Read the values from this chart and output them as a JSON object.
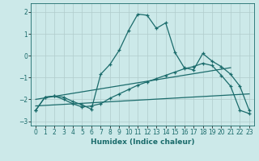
{
  "xlabel": "Humidex (Indice chaleur)",
  "ylabel": "",
  "background_color": "#cce9e9",
  "grid_color": "#b0cccc",
  "line_color": "#1a6b6b",
  "xlim": [
    -0.5,
    23.5
  ],
  "ylim": [
    -3.2,
    2.4
  ],
  "yticks": [
    -3,
    -2,
    -1,
    0,
    1,
    2
  ],
  "xticks": [
    0,
    1,
    2,
    3,
    4,
    5,
    6,
    7,
    8,
    9,
    10,
    11,
    12,
    13,
    14,
    15,
    16,
    17,
    18,
    19,
    20,
    21,
    22,
    23
  ],
  "line1_x": [
    0,
    1,
    2,
    3,
    4,
    5,
    6,
    7,
    8,
    9,
    10,
    11,
    12,
    13,
    14,
    15,
    16,
    17,
    18,
    19,
    20,
    21,
    22,
    23
  ],
  "line1_y": [
    -2.5,
    -1.9,
    -1.85,
    -1.9,
    -2.1,
    -2.25,
    -2.45,
    -0.85,
    -0.4,
    0.25,
    1.15,
    1.9,
    1.85,
    1.25,
    1.5,
    0.15,
    -0.55,
    -0.65,
    0.1,
    -0.25,
    -0.5,
    -0.85,
    -1.4,
    -2.5
  ],
  "line2_x": [
    0,
    1,
    2,
    3,
    4,
    5,
    6,
    7,
    8,
    9,
    10,
    11,
    12,
    13,
    14,
    15,
    16,
    17,
    18,
    19,
    20,
    21,
    22,
    23
  ],
  "line2_y": [
    -2.5,
    -1.9,
    -1.85,
    -2.0,
    -2.2,
    -2.35,
    -2.3,
    -2.2,
    -1.95,
    -1.75,
    -1.55,
    -1.35,
    -1.2,
    -1.05,
    -0.9,
    -0.75,
    -0.6,
    -0.5,
    -0.35,
    -0.45,
    -0.9,
    -1.4,
    -2.5,
    -2.65
  ],
  "line3_x": [
    0,
    21
  ],
  "line3_y": [
    -2.0,
    -0.55
  ],
  "line4_x": [
    0,
    23
  ],
  "line4_y": [
    -2.3,
    -1.75
  ]
}
